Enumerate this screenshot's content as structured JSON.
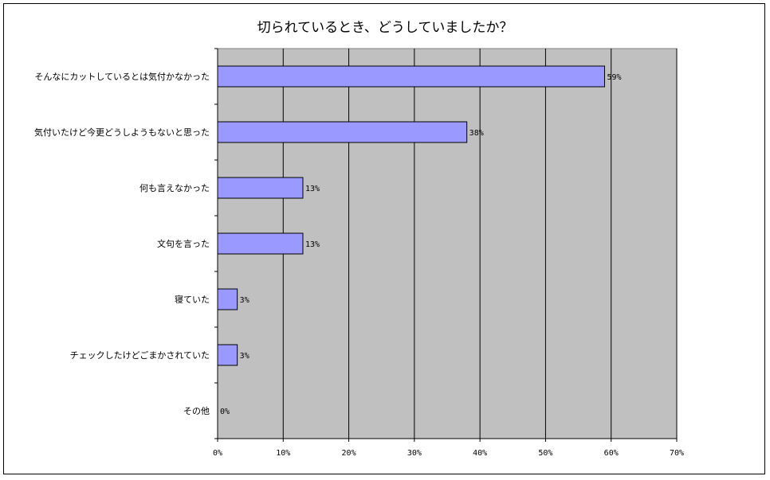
{
  "chart_data": {
    "type": "bar",
    "orientation": "horizontal",
    "title": "切られているとき、どうしていましたか？",
    "categories": [
      "そんなにカットしているとは気付かなかった",
      "気付いたけど今更どうしようもないと思った",
      "何も言えなかった",
      "文句を言った",
      "寝ていた",
      "チェックしたけどごまかされていた",
      "その他"
    ],
    "values": [
      59,
      38,
      13,
      13,
      3,
      3,
      0
    ],
    "data_labels": [
      "59%",
      "38%",
      "13%",
      "13%",
      "3%",
      "3%",
      "0%"
    ],
    "xlim": [
      0,
      70
    ],
    "x_ticks": [
      "0%",
      "10%",
      "20%",
      "30%",
      "40%",
      "50%",
      "60%",
      "70%"
    ],
    "x_tick_values": [
      0,
      10,
      20,
      30,
      40,
      50,
      60,
      70
    ],
    "grid": true,
    "legend": "none",
    "colors": {
      "bar": "#9999ff",
      "plot_background": "#c0c0c0",
      "gridline": "#000000"
    }
  }
}
